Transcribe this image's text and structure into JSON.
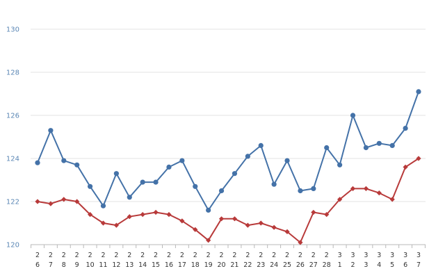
{
  "chart_data": {
    "type": "line",
    "title": "",
    "xlabel": "",
    "ylabel": "",
    "ylim": [
      120,
      130
    ],
    "yticks": [
      120,
      122,
      124,
      126,
      128,
      130
    ],
    "grid": true,
    "legend": "none",
    "x_ticks": [
      {
        "m": "2",
        "d": "6"
      },
      {
        "m": "2",
        "d": "7"
      },
      {
        "m": "2",
        "d": "8"
      },
      {
        "m": "2",
        "d": "9"
      },
      {
        "m": "2",
        "d": "10"
      },
      {
        "m": "2",
        "d": "11"
      },
      {
        "m": "2",
        "d": "12"
      },
      {
        "m": "2",
        "d": "13"
      },
      {
        "m": "2",
        "d": "14"
      },
      {
        "m": "2",
        "d": "15"
      },
      {
        "m": "2",
        "d": "16"
      },
      {
        "m": "2",
        "d": "17"
      },
      {
        "m": "2",
        "d": "18"
      },
      {
        "m": "2",
        "d": "19"
      },
      {
        "m": "2",
        "d": "20"
      },
      {
        "m": "2",
        "d": "21"
      },
      {
        "m": "2",
        "d": "22"
      },
      {
        "m": "2",
        "d": "23"
      },
      {
        "m": "2",
        "d": "24"
      },
      {
        "m": "2",
        "d": "25"
      },
      {
        "m": "2",
        "d": "26"
      },
      {
        "m": "2",
        "d": "27"
      },
      {
        "m": "2",
        "d": "28"
      },
      {
        "m": "3",
        "d": "1"
      },
      {
        "m": "3",
        "d": "2"
      },
      {
        "m": "3",
        "d": "3"
      },
      {
        "m": "3",
        "d": "4"
      },
      {
        "m": "3",
        "d": "5"
      },
      {
        "m": "3",
        "d": "6"
      },
      {
        "m": "3",
        "d": "7"
      }
    ],
    "series": [
      {
        "color": "#4472a8",
        "marker": "circle",
        "values": [
          123.8,
          125.3,
          123.9,
          123.7,
          122.7,
          121.8,
          123.3,
          122.2,
          122.9,
          122.9,
          123.6,
          123.9,
          122.7,
          121.6,
          122.5,
          123.3,
          124.1,
          124.6,
          122.8,
          123.9,
          122.5,
          122.6,
          124.5,
          123.7,
          126.0,
          124.5,
          124.7,
          124.6,
          125.4,
          127.1
        ]
      },
      {
        "color": "#b83a3a",
        "marker": "diamond",
        "values": [
          122.0,
          121.9,
          122.1,
          122.0,
          121.4,
          121.0,
          120.9,
          121.3,
          121.4,
          121.5,
          121.4,
          121.1,
          120.7,
          120.2,
          121.2,
          121.2,
          120.9,
          121.0,
          120.8,
          120.6,
          120.1,
          121.5,
          121.4,
          122.1,
          122.6,
          122.6,
          122.4,
          122.1,
          123.6,
          124.0
        ]
      }
    ]
  }
}
